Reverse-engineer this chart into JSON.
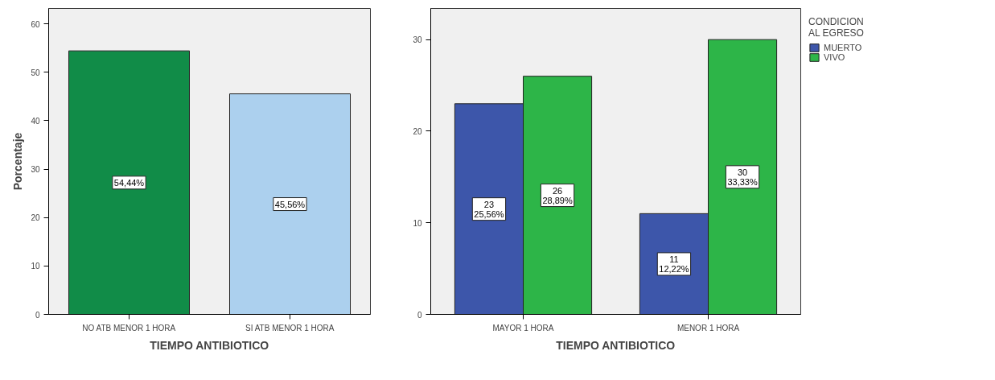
{
  "chart_data": [
    {
      "type": "bar",
      "xlabel": "TIEMPO ANTIBIOTICO",
      "ylabel": "Porcentaje",
      "categories": [
        "NO ATB MENOR 1 HORA",
        "SI ATB MENOR 1 HORA"
      ],
      "values": [
        54.44,
        45.56
      ],
      "colors": [
        "#118c48",
        "#acd0ee"
      ],
      "value_labels": [
        "54,44%",
        "45,56%"
      ],
      "ylim": [
        0,
        63.2
      ],
      "yticks": [
        0,
        10,
        20,
        30,
        40,
        50,
        60
      ],
      "grid": false,
      "legend": false
    },
    {
      "type": "bar",
      "xlabel": "TIEMPO ANTIBIOTICO",
      "legend_title": "CONDICION\nAL EGRESO",
      "categories": [
        "MAYOR 1 HORA",
        "MENOR 1 HORA"
      ],
      "ylim": [
        0,
        33.4
      ],
      "yticks": [
        0,
        10,
        20,
        30
      ],
      "grid": false,
      "legend": "right",
      "series": [
        {
          "name": "MUERTO",
          "color": "#3d56aa",
          "values": [
            23,
            11
          ],
          "value_labels": [
            "23\n25,56%",
            "11\n12,22%"
          ]
        },
        {
          "name": "VIVO",
          "color": "#2db548",
          "values": [
            26,
            30
          ],
          "value_labels": [
            "26\n28,89%",
            "30\n33,33%"
          ]
        }
      ]
    }
  ]
}
